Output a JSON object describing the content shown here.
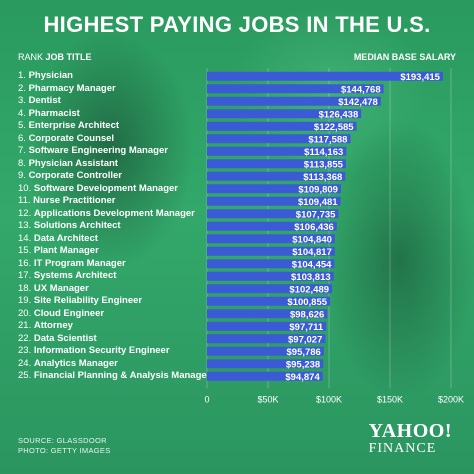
{
  "header": {
    "title": "HIGHEST PAYING JOBS IN THE U.S.",
    "rank_label": "RANK",
    "job_title_label": "JOB TITLE",
    "salary_label": "MEDIAN BASE SALARY"
  },
  "footer": {
    "source": "SOURCE:  GLASSDOOR",
    "photo": "PHOTO: GETTY IMAGES"
  },
  "logo": {
    "line1": "YAHOO!",
    "line2": "FINANCE"
  },
  "colors": {
    "bar": "#3b5bd6",
    "background": "#2f9e63",
    "text": "#ffffff"
  },
  "chart_data": {
    "type": "bar",
    "orientation": "horizontal",
    "title": "HIGHEST PAYING JOBS IN THE U.S.",
    "xlabel": "",
    "ylabel": "",
    "xlim": [
      0,
      200000
    ],
    "tick_values": [
      0,
      50000,
      100000,
      150000,
      200000
    ],
    "tick_labels": [
      "0",
      "$50K",
      "$100K",
      "$150K",
      "$200K"
    ],
    "grid": true,
    "categories": [
      "Physician",
      "Pharmacy Manager",
      "Dentist",
      "Pharmacist",
      "Enterprise Architect",
      "Corporate Counsel",
      "Software Engineering Manager",
      "Physician Assistant",
      "Corporate Controller",
      "Software Development Manager",
      "Nurse Practitioner",
      "Applications Development Manager",
      "Solutions Architect",
      "Data Architect",
      "Plant Manager",
      "IT Program Manager",
      "Systems Architect",
      "UX Manager",
      "Site Reliability Engineer",
      "Cloud Engineer",
      "Attorney",
      "Data Scientist",
      "Information Security Engineer",
      "Analytics Manager",
      "Financial Planning & Analysis Manager"
    ],
    "values": [
      193415,
      144768,
      142478,
      126438,
      122585,
      117588,
      114163,
      113855,
      113368,
      109809,
      109481,
      107735,
      106436,
      104840,
      104817,
      104454,
      103813,
      102489,
      100855,
      98626,
      97711,
      97027,
      95786,
      95238,
      94874
    ],
    "value_labels": [
      "$193,415",
      "$144,768",
      "$142,478",
      "$126,438",
      "$122,585",
      "$117,588",
      "$114,163",
      "$113,855",
      "$113,368",
      "$109,809",
      "$109,481",
      "$107,735",
      "$106,436",
      "$104,840",
      "$104,817",
      "$104,454",
      "$103,813",
      "$102,489",
      "$100,855",
      "$98,626",
      "$97,711",
      "$97,027",
      "$95,786",
      "$95,238",
      "$94,874"
    ],
    "ranks": [
      "1.",
      "2.",
      "3.",
      "4.",
      "5.",
      "6.",
      "7.",
      "8.",
      "9.",
      "10.",
      "11.",
      "12.",
      "13.",
      "14.",
      "15.",
      "16.",
      "17.",
      "18.",
      "19.",
      "20.",
      "21.",
      "22.",
      "23.",
      "24.",
      "25."
    ]
  }
}
